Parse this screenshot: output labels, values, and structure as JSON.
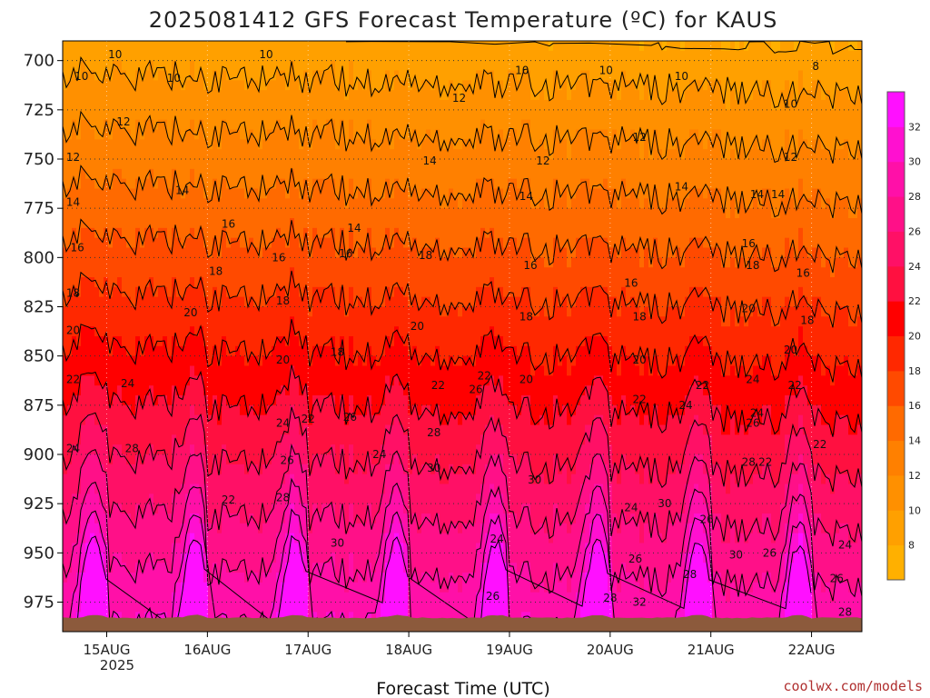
{
  "page": {
    "title": "2025081412 GFS Forecast Temperature (ºC) for KAUS",
    "xlabel": "Forecast Time (UTC)",
    "credit": "coolwx.com/models",
    "year_label": "2025"
  },
  "colors": {
    "ground": "#8c5a3c",
    "gridline": "#333333",
    "contour": "#000000"
  },
  "chart_data": {
    "type": "heatmap",
    "title": "2025081412 GFS Forecast Temperature (ºC) for KAUS",
    "xlabel": "Forecast Time (UTC)",
    "ylabel": "",
    "x_ticks": [
      "15AUG",
      "16AUG",
      "17AUG",
      "18AUG",
      "19AUG",
      "20AUG",
      "21AUG",
      "22AUG"
    ],
    "x_range_hours": [
      -10.5,
      180
    ],
    "y_ticks": [
      700,
      725,
      750,
      775,
      800,
      825,
      850,
      875,
      900,
      925,
      950,
      975
    ],
    "y_range_hPa": [
      690,
      990
    ],
    "y_scale": "reversed pressure",
    "colorbar": {
      "ticks": [
        8,
        10,
        12,
        14,
        16,
        18,
        20,
        22,
        24,
        26,
        28,
        30,
        32
      ],
      "levels": [
        6,
        8,
        10,
        12,
        14,
        16,
        18,
        20,
        22,
        24,
        26,
        28,
        30,
        32,
        34
      ],
      "colors": [
        "#ffb000",
        "#ffa000",
        "#ff9000",
        "#ff8000",
        "#ff6a00",
        "#ff4a00",
        "#ff2800",
        "#ff0000",
        "#ff1040",
        "#ff1066",
        "#ff1088",
        "#ff10a8",
        "#ff10d0",
        "#ff10ff"
      ]
    },
    "surface_pressure_hPa": 983,
    "contour_interval_c": 2,
    "contour_labels": [
      {
        "t": 2,
        "p": 697,
        "v": "10"
      },
      {
        "t": 38,
        "p": 697,
        "v": "10"
      },
      {
        "t": 99,
        "p": 705,
        "v": "10"
      },
      {
        "t": 119,
        "p": 705,
        "v": "10"
      },
      {
        "t": 169,
        "p": 703,
        "v": "8"
      },
      {
        "t": -6,
        "p": 708,
        "v": "10"
      },
      {
        "t": 16,
        "p": 709,
        "v": "10"
      },
      {
        "t": 137,
        "p": 708,
        "v": "10"
      },
      {
        "t": 163,
        "p": 722,
        "v": "10"
      },
      {
        "t": 84,
        "p": 719,
        "v": "12"
      },
      {
        "t": 4,
        "p": 731,
        "v": "12"
      },
      {
        "t": 127,
        "p": 739,
        "v": "12"
      },
      {
        "t": -8,
        "p": 749,
        "v": "12"
      },
      {
        "t": 104,
        "p": 751,
        "v": "12"
      },
      {
        "t": 163,
        "p": 749,
        "v": "12"
      },
      {
        "t": 77,
        "p": 751,
        "v": "14"
      },
      {
        "t": 137,
        "p": 764,
        "v": "14"
      },
      {
        "t": 18,
        "p": 766,
        "v": "14"
      },
      {
        "t": 160,
        "p": 768,
        "v": "14"
      },
      {
        "t": -8,
        "p": 772,
        "v": "14"
      },
      {
        "t": 100,
        "p": 769,
        "v": "14"
      },
      {
        "t": 155,
        "p": 768,
        "v": "14"
      },
      {
        "t": 29,
        "p": 783,
        "v": "16"
      },
      {
        "t": 59,
        "p": 785,
        "v": "14"
      },
      {
        "t": 153,
        "p": 793,
        "v": "16"
      },
      {
        "t": -7,
        "p": 795,
        "v": "16"
      },
      {
        "t": 57,
        "p": 798,
        "v": "16"
      },
      {
        "t": 76,
        "p": 799,
        "v": "18"
      },
      {
        "t": 41,
        "p": 800,
        "v": "16"
      },
      {
        "t": 101,
        "p": 804,
        "v": "16"
      },
      {
        "t": 154,
        "p": 804,
        "v": "18"
      },
      {
        "t": 26,
        "p": 807,
        "v": "18"
      },
      {
        "t": 166,
        "p": 808,
        "v": "16"
      },
      {
        "t": 125,
        "p": 813,
        "v": "16"
      },
      {
        "t": -8,
        "p": 818,
        "v": "18"
      },
      {
        "t": 42,
        "p": 822,
        "v": "18"
      },
      {
        "t": 153,
        "p": 826,
        "v": "20"
      },
      {
        "t": 20,
        "p": 828,
        "v": "20"
      },
      {
        "t": 100,
        "p": 830,
        "v": "18"
      },
      {
        "t": 127,
        "p": 830,
        "v": "18"
      },
      {
        "t": 167,
        "p": 832,
        "v": "18"
      },
      {
        "t": -8,
        "p": 837,
        "v": "20"
      },
      {
        "t": 74,
        "p": 835,
        "v": "20"
      },
      {
        "t": 163,
        "p": 847,
        "v": "20"
      },
      {
        "t": 55,
        "p": 848,
        "v": "18"
      },
      {
        "t": 42,
        "p": 852,
        "v": "20"
      },
      {
        "t": 127,
        "p": 852,
        "v": "20"
      },
      {
        "t": -8,
        "p": 862,
        "v": "22"
      },
      {
        "t": 5,
        "p": 864,
        "v": "24"
      },
      {
        "t": 90,
        "p": 860,
        "v": "22"
      },
      {
        "t": 100,
        "p": 862,
        "v": "20"
      },
      {
        "t": 154,
        "p": 862,
        "v": "24"
      },
      {
        "t": 79,
        "p": 865,
        "v": "22"
      },
      {
        "t": 142,
        "p": 865,
        "v": "22"
      },
      {
        "t": 187,
        "p": 866,
        "v": "24"
      },
      {
        "t": 88,
        "p": 867,
        "v": "26"
      },
      {
        "t": 127,
        "p": 872,
        "v": "22"
      },
      {
        "t": 138,
        "p": 875,
        "v": "24"
      },
      {
        "t": 164,
        "p": 865,
        "v": "22"
      },
      {
        "t": 58,
        "p": 881,
        "v": "26"
      },
      {
        "t": 155,
        "p": 879,
        "v": "24"
      },
      {
        "t": 48,
        "p": 882,
        "v": "22"
      },
      {
        "t": 42,
        "p": 884,
        "v": "24"
      },
      {
        "t": 154,
        "p": 884,
        "v": "26"
      },
      {
        "t": 78,
        "p": 889,
        "v": "28"
      },
      {
        "t": -8,
        "p": 897,
        "v": "24"
      },
      {
        "t": 6,
        "p": 897,
        "v": "28"
      },
      {
        "t": 65,
        "p": 900,
        "v": "24"
      },
      {
        "t": 43,
        "p": 903,
        "v": "26"
      },
      {
        "t": 153,
        "p": 904,
        "v": "28"
      },
      {
        "t": 157,
        "p": 904,
        "v": "22"
      },
      {
        "t": 170,
        "p": 895,
        "v": "22"
      },
      {
        "t": 78,
        "p": 907,
        "v": "30"
      },
      {
        "t": 102,
        "p": 913,
        "v": "30"
      },
      {
        "t": 29,
        "p": 923,
        "v": "22"
      },
      {
        "t": 42,
        "p": 922,
        "v": "28"
      },
      {
        "t": 125,
        "p": 927,
        "v": "24"
      },
      {
        "t": 133,
        "p": 925,
        "v": "30"
      },
      {
        "t": 143,
        "p": 933,
        "v": "26"
      },
      {
        "t": 55,
        "p": 945,
        "v": "30"
      },
      {
        "t": 93,
        "p": 943,
        "v": "24"
      },
      {
        "t": 176,
        "p": 946,
        "v": "24"
      },
      {
        "t": 150,
        "p": 951,
        "v": "30"
      },
      {
        "t": 158,
        "p": 950,
        "v": "26"
      },
      {
        "t": 126,
        "p": 953,
        "v": "26"
      },
      {
        "t": 139,
        "p": 961,
        "v": "28"
      },
      {
        "t": 174,
        "p": 963,
        "v": "26"
      },
      {
        "t": 92,
        "p": 972,
        "v": "26"
      },
      {
        "t": 120,
        "p": 973,
        "v": "28"
      },
      {
        "t": 127,
        "p": 975,
        "v": "32"
      },
      {
        "t": 176,
        "p": 980,
        "v": "28"
      }
    ]
  }
}
